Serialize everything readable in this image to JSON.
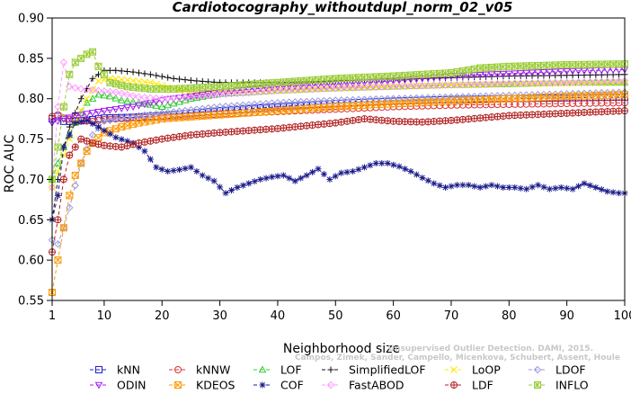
{
  "chart_data": {
    "type": "line",
    "title": "Cardiotocography_withoutdupl_norm_02_v05",
    "xlabel": "Neighborhood size",
    "ylabel": "ROC AUC",
    "xlim": [
      1,
      100
    ],
    "ylim": [
      0.55,
      0.9
    ],
    "xticks": [
      1,
      10,
      20,
      30,
      40,
      50,
      60,
      70,
      80,
      90,
      100
    ],
    "yticks": [
      0.55,
      0.6,
      0.65,
      0.7,
      0.75,
      0.8,
      0.85,
      0.9
    ],
    "ytick_labels": [
      "0.55",
      "0.60",
      "0.65",
      "0.70",
      "0.75",
      "0.80",
      "0.85",
      "0.90"
    ],
    "grid": false,
    "legend_position": "bottom",
    "series": [
      {
        "name": "kNN",
        "color": "#1f1fcc",
        "marker": "square",
        "points": [
          [
            1,
            0.775
          ],
          [
            2,
            0.778
          ],
          [
            3,
            0.772
          ],
          [
            5,
            0.772
          ],
          [
            8,
            0.774
          ],
          [
            10,
            0.776
          ],
          [
            15,
            0.777
          ],
          [
            20,
            0.779
          ],
          [
            30,
            0.785
          ],
          [
            40,
            0.79
          ],
          [
            50,
            0.794
          ],
          [
            60,
            0.797
          ],
          [
            70,
            0.799
          ],
          [
            80,
            0.8
          ],
          [
            90,
            0.801
          ],
          [
            100,
            0.802
          ]
        ]
      },
      {
        "name": "kNNW",
        "color": "#dd3333",
        "marker": "circle",
        "points": [
          [
            1,
            0.778
          ],
          [
            2,
            0.78
          ],
          [
            3,
            0.776
          ],
          [
            5,
            0.773
          ],
          [
            8,
            0.772
          ],
          [
            10,
            0.774
          ],
          [
            15,
            0.776
          ],
          [
            20,
            0.777
          ],
          [
            30,
            0.781
          ],
          [
            40,
            0.784
          ],
          [
            50,
            0.787
          ],
          [
            60,
            0.79
          ],
          [
            70,
            0.792
          ],
          [
            80,
            0.793
          ],
          [
            90,
            0.794
          ],
          [
            100,
            0.795
          ]
        ]
      },
      {
        "name": "LOF",
        "color": "#33cc33",
        "marker": "triangle-up",
        "points": [
          [
            1,
            0.7
          ],
          [
            3,
            0.74
          ],
          [
            5,
            0.77
          ],
          [
            7,
            0.795
          ],
          [
            9,
            0.805
          ],
          [
            11,
            0.803
          ],
          [
            13,
            0.798
          ],
          [
            16,
            0.795
          ],
          [
            20,
            0.79
          ],
          [
            25,
            0.8
          ],
          [
            30,
            0.806
          ],
          [
            40,
            0.81
          ],
          [
            50,
            0.813
          ],
          [
            60,
            0.815
          ],
          [
            70,
            0.817
          ],
          [
            80,
            0.818
          ],
          [
            90,
            0.82
          ],
          [
            100,
            0.82
          ]
        ]
      },
      {
        "name": "SimplifiedLOF",
        "color": "#111111",
        "marker": "plus",
        "points": [
          [
            1,
            0.65
          ],
          [
            2,
            0.7
          ],
          [
            3,
            0.74
          ],
          [
            4,
            0.765
          ],
          [
            6,
            0.8
          ],
          [
            8,
            0.825
          ],
          [
            10,
            0.835
          ],
          [
            12,
            0.835
          ],
          [
            15,
            0.833
          ],
          [
            18,
            0.83
          ],
          [
            22,
            0.825
          ],
          [
            26,
            0.822
          ],
          [
            30,
            0.82
          ],
          [
            40,
            0.82
          ],
          [
            50,
            0.822
          ],
          [
            60,
            0.824
          ],
          [
            70,
            0.826
          ],
          [
            80,
            0.828
          ],
          [
            90,
            0.829
          ],
          [
            100,
            0.83
          ]
        ]
      },
      {
        "name": "LoOP",
        "color": "#ffe600",
        "marker": "cross",
        "points": [
          [
            1,
            0.69
          ],
          [
            3,
            0.73
          ],
          [
            5,
            0.77
          ],
          [
            7,
            0.8
          ],
          [
            9,
            0.822
          ],
          [
            11,
            0.825
          ],
          [
            14,
            0.823
          ],
          [
            18,
            0.82
          ],
          [
            22,
            0.812
          ],
          [
            26,
            0.808
          ],
          [
            30,
            0.808
          ],
          [
            40,
            0.81
          ],
          [
            50,
            0.813
          ],
          [
            60,
            0.815
          ],
          [
            70,
            0.817
          ],
          [
            80,
            0.818
          ],
          [
            90,
            0.819
          ],
          [
            100,
            0.82
          ]
        ]
      },
      {
        "name": "LDOF",
        "color": "#9999dd",
        "marker": "diamond",
        "points": [
          [
            1,
            0.625
          ],
          [
            2,
            0.62
          ],
          [
            3,
            0.64
          ],
          [
            4,
            0.665
          ],
          [
            6,
            0.72
          ],
          [
            8,
            0.755
          ],
          [
            10,
            0.772
          ],
          [
            15,
            0.778
          ],
          [
            20,
            0.782
          ],
          [
            30,
            0.79
          ],
          [
            40,
            0.795
          ],
          [
            50,
            0.798
          ],
          [
            60,
            0.8
          ],
          [
            70,
            0.802
          ],
          [
            80,
            0.804
          ],
          [
            90,
            0.806
          ],
          [
            100,
            0.808
          ]
        ]
      },
      {
        "name": "ODIN",
        "color": "#a020f0",
        "marker": "triangle-down",
        "points": [
          [
            1,
            0.77
          ],
          [
            3,
            0.775
          ],
          [
            6,
            0.78
          ],
          [
            10,
            0.785
          ],
          [
            15,
            0.79
          ],
          [
            20,
            0.798
          ],
          [
            30,
            0.808
          ],
          [
            40,
            0.815
          ],
          [
            50,
            0.818
          ],
          [
            60,
            0.822
          ],
          [
            70,
            0.828
          ],
          [
            80,
            0.831
          ],
          [
            90,
            0.834
          ],
          [
            100,
            0.836
          ]
        ]
      },
      {
        "name": "KDEOS",
        "color": "#ff9900",
        "marker": "square-x",
        "points": [
          [
            1,
            0.56
          ],
          [
            2,
            0.6
          ],
          [
            3,
            0.64
          ],
          [
            4,
            0.68
          ],
          [
            5,
            0.705
          ],
          [
            6,
            0.72
          ],
          [
            7,
            0.735
          ],
          [
            8,
            0.745
          ],
          [
            10,
            0.758
          ],
          [
            13,
            0.765
          ],
          [
            16,
            0.77
          ],
          [
            20,
            0.775
          ],
          [
            30,
            0.78
          ],
          [
            40,
            0.785
          ],
          [
            50,
            0.79
          ],
          [
            60,
            0.794
          ],
          [
            70,
            0.797
          ],
          [
            80,
            0.8
          ],
          [
            90,
            0.803
          ],
          [
            100,
            0.805
          ]
        ]
      },
      {
        "name": "COF",
        "color": "#1a1a8c",
        "marker": "asterisk",
        "points": [
          [
            1,
            0.65
          ],
          [
            2,
            0.68
          ],
          [
            3,
            0.74
          ],
          [
            5,
            0.77
          ],
          [
            7,
            0.773
          ],
          [
            9,
            0.765
          ],
          [
            12,
            0.752
          ],
          [
            15,
            0.745
          ],
          [
            17,
            0.735
          ],
          [
            19,
            0.715
          ],
          [
            21,
            0.71
          ],
          [
            23,
            0.712
          ],
          [
            25,
            0.715
          ],
          [
            27,
            0.705
          ],
          [
            29,
            0.698
          ],
          [
            31,
            0.683
          ],
          [
            33,
            0.69
          ],
          [
            35,
            0.695
          ],
          [
            37,
            0.7
          ],
          [
            39,
            0.703
          ],
          [
            41,
            0.705
          ],
          [
            43,
            0.698
          ],
          [
            45,
            0.705
          ],
          [
            47,
            0.713
          ],
          [
            49,
            0.7
          ],
          [
            51,
            0.708
          ],
          [
            53,
            0.71
          ],
          [
            55,
            0.715
          ],
          [
            57,
            0.72
          ],
          [
            59,
            0.72
          ],
          [
            61,
            0.716
          ],
          [
            63,
            0.71
          ],
          [
            65,
            0.702
          ],
          [
            67,
            0.695
          ],
          [
            69,
            0.69
          ],
          [
            71,
            0.693
          ],
          [
            73,
            0.693
          ],
          [
            75,
            0.69
          ],
          [
            77,
            0.693
          ],
          [
            79,
            0.69
          ],
          [
            81,
            0.69
          ],
          [
            83,
            0.688
          ],
          [
            85,
            0.693
          ],
          [
            87,
            0.688
          ],
          [
            89,
            0.69
          ],
          [
            91,
            0.688
          ],
          [
            93,
            0.695
          ],
          [
            95,
            0.69
          ],
          [
            97,
            0.685
          ],
          [
            99,
            0.683
          ],
          [
            100,
            0.683
          ]
        ]
      },
      {
        "name": "FastABOD",
        "color": "#ff99ff",
        "marker": "diamond",
        "points": [
          [
            1,
            0.69
          ],
          [
            2,
            0.79
          ],
          [
            3,
            0.845
          ],
          [
            4,
            0.815
          ],
          [
            6,
            0.812
          ],
          [
            9,
            0.81
          ],
          [
            12,
            0.808
          ],
          [
            16,
            0.802
          ],
          [
            20,
            0.8
          ],
          [
            25,
            0.802
          ],
          [
            30,
            0.805
          ],
          [
            40,
            0.81
          ],
          [
            50,
            0.813
          ],
          [
            60,
            0.815
          ],
          [
            70,
            0.817
          ],
          [
            80,
            0.819
          ],
          [
            90,
            0.82
          ],
          [
            100,
            0.822
          ]
        ]
      },
      {
        "name": "LDF",
        "color": "#b22222",
        "marker": "circle-plus",
        "points": [
          [
            1,
            0.61
          ],
          [
            2,
            0.65
          ],
          [
            3,
            0.7
          ],
          [
            4,
            0.73
          ],
          [
            6,
            0.75
          ],
          [
            8,
            0.745
          ],
          [
            10,
            0.742
          ],
          [
            13,
            0.74
          ],
          [
            16,
            0.745
          ],
          [
            20,
            0.75
          ],
          [
            25,
            0.755
          ],
          [
            30,
            0.758
          ],
          [
            40,
            0.763
          ],
          [
            50,
            0.77
          ],
          [
            55,
            0.775
          ],
          [
            60,
            0.772
          ],
          [
            65,
            0.771
          ],
          [
            70,
            0.773
          ],
          [
            75,
            0.776
          ],
          [
            80,
            0.779
          ],
          [
            90,
            0.782
          ],
          [
            100,
            0.785
          ]
        ]
      },
      {
        "name": "INFLO",
        "color": "#99cc33",
        "marker": "square-star",
        "points": [
          [
            1,
            0.7
          ],
          [
            2,
            0.74
          ],
          [
            3,
            0.79
          ],
          [
            4,
            0.83
          ],
          [
            5,
            0.845
          ],
          [
            6,
            0.85
          ],
          [
            7,
            0.855
          ],
          [
            8,
            0.858
          ],
          [
            9,
            0.84
          ],
          [
            10,
            0.83
          ],
          [
            11,
            0.82
          ],
          [
            14,
            0.815
          ],
          [
            18,
            0.812
          ],
          [
            22,
            0.812
          ],
          [
            30,
            0.815
          ],
          [
            40,
            0.82
          ],
          [
            50,
            0.825
          ],
          [
            60,
            0.828
          ],
          [
            70,
            0.832
          ],
          [
            75,
            0.838
          ],
          [
            80,
            0.84
          ],
          [
            90,
            0.842
          ],
          [
            100,
            0.843
          ]
        ]
      }
    ],
    "credit_lines": [
      "Campos, Zimek, Sander, Campello, Micenkova, Schubert, Assent, Houle",
      "Unsupervised Outlier Detection. DAMI, 2015."
    ]
  }
}
